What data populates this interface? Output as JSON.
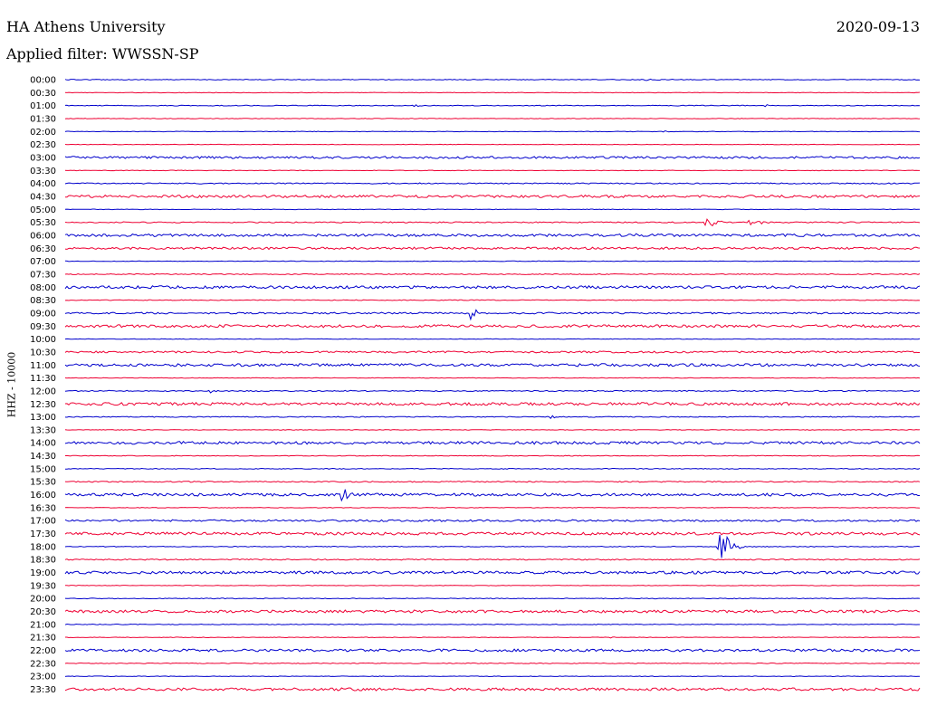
{
  "header": {
    "station": "HA Athens University",
    "date": "2020-09-13",
    "filter": "Applied filter: WWSSN-SP"
  },
  "channel_label": "HHZ - 10000",
  "colors": {
    "odd": "#0000cc",
    "even": "#ee0033",
    "text": "#000000"
  },
  "chart_data": {
    "type": "line",
    "title": "HA Athens University",
    "subtitle": "Applied filter: WWSSN-SP",
    "ylabel": "HHZ - 10000",
    "xlabel": "",
    "rows": [
      {
        "label": "00:00",
        "noise": 0.4,
        "events": [
          {
            "x": 0.68,
            "amp": 1.5,
            "dur": 0.04
          }
        ]
      },
      {
        "label": "00:30",
        "noise": 0.3,
        "events": []
      },
      {
        "label": "01:00",
        "noise": 0.4,
        "events": [
          {
            "x": 0.41,
            "amp": 1.2,
            "dur": 0.02
          },
          {
            "x": 0.82,
            "amp": 1.2,
            "dur": 0.02
          }
        ]
      },
      {
        "label": "01:30",
        "noise": 0.3,
        "events": []
      },
      {
        "label": "02:00",
        "noise": 0.3,
        "events": [
          {
            "x": 0.7,
            "amp": 2,
            "dur": 0.01
          }
        ]
      },
      {
        "label": "02:30",
        "noise": 0.3,
        "events": []
      },
      {
        "label": "03:00",
        "noise": 1.2,
        "events": []
      },
      {
        "label": "03:30",
        "noise": 0.3,
        "events": []
      },
      {
        "label": "04:00",
        "noise": 0.6,
        "events": []
      },
      {
        "label": "04:30",
        "noise": 1.4,
        "events": []
      },
      {
        "label": "05:00",
        "noise": 0.3,
        "events": []
      },
      {
        "label": "05:30",
        "noise": 0.6,
        "events": [
          {
            "x": 0.75,
            "amp": 11,
            "dur": 0.02
          },
          {
            "x": 0.8,
            "amp": 3,
            "dur": 0.05
          }
        ]
      },
      {
        "label": "06:00",
        "noise": 1.4,
        "events": [
          {
            "x": 0.67,
            "amp": 3,
            "dur": 0.01
          }
        ]
      },
      {
        "label": "06:30",
        "noise": 1.2,
        "events": []
      },
      {
        "label": "07:00",
        "noise": 0.3,
        "events": []
      },
      {
        "label": "07:30",
        "noise": 0.5,
        "events": []
      },
      {
        "label": "08:00",
        "noise": 1.5,
        "events": []
      },
      {
        "label": "08:30",
        "noise": 0.4,
        "events": []
      },
      {
        "label": "09:00",
        "noise": 0.9,
        "events": [
          {
            "x": 0.475,
            "amp": 9,
            "dur": 0.02
          }
        ]
      },
      {
        "label": "09:30",
        "noise": 1.5,
        "events": []
      },
      {
        "label": "10:00",
        "noise": 0.3,
        "events": []
      },
      {
        "label": "10:30",
        "noise": 1.0,
        "events": []
      },
      {
        "label": "11:00",
        "noise": 1.5,
        "events": []
      },
      {
        "label": "11:30",
        "noise": 0.3,
        "events": []
      },
      {
        "label": "12:00",
        "noise": 0.6,
        "events": [
          {
            "x": 0.17,
            "amp": 2,
            "dur": 0.01
          }
        ]
      },
      {
        "label": "12:30",
        "noise": 1.5,
        "events": []
      },
      {
        "label": "13:00",
        "noise": 0.5,
        "events": [
          {
            "x": 0.57,
            "amp": 2,
            "dur": 0.01
          }
        ]
      },
      {
        "label": "13:30",
        "noise": 0.3,
        "events": []
      },
      {
        "label": "14:00",
        "noise": 1.5,
        "events": []
      },
      {
        "label": "14:30",
        "noise": 0.4,
        "events": []
      },
      {
        "label": "15:00",
        "noise": 0.4,
        "events": []
      },
      {
        "label": "15:30",
        "noise": 0.6,
        "events": []
      },
      {
        "label": "16:00",
        "noise": 1.5,
        "events": [
          {
            "x": 0.325,
            "amp": 10,
            "dur": 0.025
          }
        ]
      },
      {
        "label": "16:30",
        "noise": 0.3,
        "events": []
      },
      {
        "label": "17:00",
        "noise": 1.0,
        "events": [
          {
            "x": 0.33,
            "amp": 2,
            "dur": 0.01
          }
        ]
      },
      {
        "label": "17:30",
        "noise": 1.5,
        "events": []
      },
      {
        "label": "18:00",
        "noise": 0.4,
        "events": [
          {
            "x": 0.765,
            "amp": 26,
            "dur": 0.03
          }
        ]
      },
      {
        "label": "18:30",
        "noise": 0.6,
        "events": []
      },
      {
        "label": "19:00",
        "noise": 1.5,
        "events": []
      },
      {
        "label": "19:30",
        "noise": 0.3,
        "events": []
      },
      {
        "label": "20:00",
        "noise": 0.4,
        "events": []
      },
      {
        "label": "20:30",
        "noise": 1.5,
        "events": []
      },
      {
        "label": "21:00",
        "noise": 0.4,
        "events": []
      },
      {
        "label": "21:30",
        "noise": 0.3,
        "events": [
          {
            "x": 0.64,
            "amp": 1.5,
            "dur": 0.01
          }
        ]
      },
      {
        "label": "22:00",
        "noise": 1.4,
        "events": [
          {
            "x": 0.87,
            "amp": 3,
            "dur": 0.01
          }
        ]
      },
      {
        "label": "22:30",
        "noise": 0.4,
        "events": []
      },
      {
        "label": "23:00",
        "noise": 0.3,
        "events": []
      },
      {
        "label": "23:30",
        "noise": 1.5,
        "events": []
      }
    ]
  }
}
